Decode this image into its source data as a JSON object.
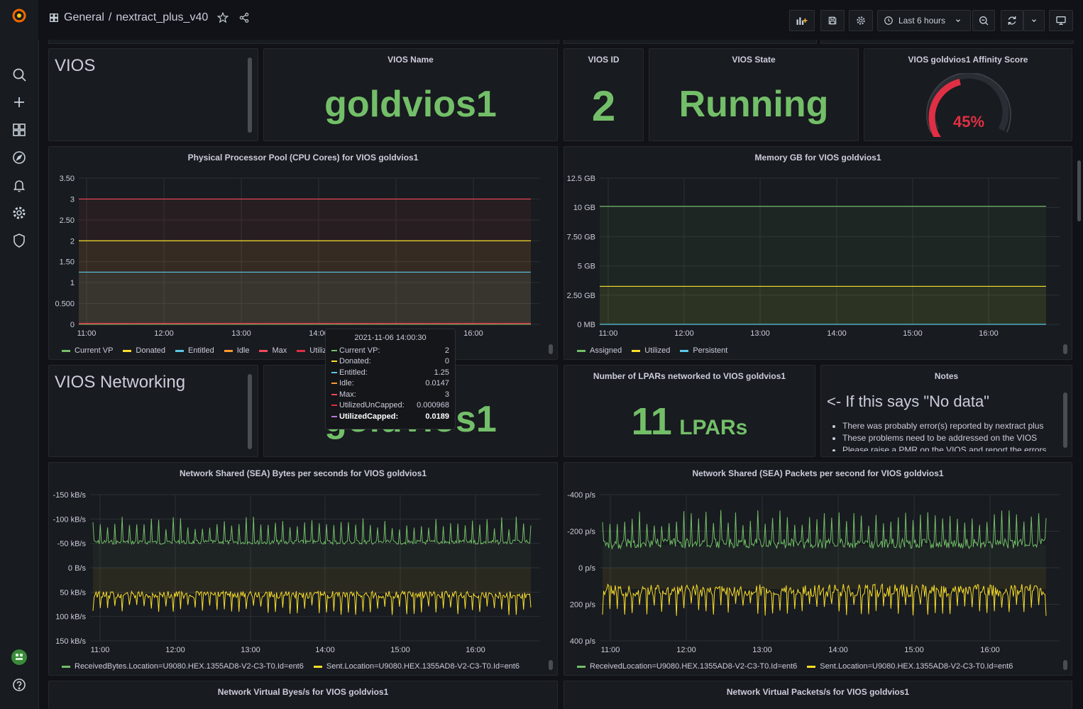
{
  "breadcrumb": {
    "folder": "General",
    "separator": "/",
    "dashboard": "nextract_plus_v40"
  },
  "toolbar": {
    "time_range": "Last 6 hours"
  },
  "colors": {
    "green": "#73bf69",
    "yellow": "#fade2a",
    "cyan": "#5ac8e6",
    "orange": "#ff9830",
    "red": "#f2495c",
    "darkred": "#e02f44",
    "purple": "#b877d9"
  },
  "vios_row": {
    "title": "VIOS"
  },
  "vios_name": {
    "title": "VIOS Name",
    "value": "goldvios1"
  },
  "vios_id": {
    "title": "VIOS ID",
    "value": "2"
  },
  "vios_state": {
    "title": "VIOS State",
    "value": "Running"
  },
  "affinity": {
    "title": "VIOS goldvios1 Affinity Score",
    "value": "45%",
    "fraction": 0.45
  },
  "cpu_panel": {
    "title": "Physical Processor Pool (CPU Cores) for VIOS goldvios1",
    "y_ticks": [
      "0",
      "0.500",
      "1",
      "1.50",
      "2",
      "2.50",
      "3",
      "3.50"
    ],
    "x_ticks": [
      "11:00",
      "12:00",
      "13:00",
      "14:00",
      "15:00",
      "16:00"
    ],
    "legend": [
      {
        "name": "Current VP",
        "color": "#73bf69"
      },
      {
        "name": "Donated",
        "color": "#fade2a"
      },
      {
        "name": "Entitled",
        "color": "#5ac8e6"
      },
      {
        "name": "Idle",
        "color": "#ff9830"
      },
      {
        "name": "Max",
        "color": "#f2495c"
      },
      {
        "name": "UtilizedUnCapped",
        "color": "#e02f44"
      }
    ]
  },
  "tooltip": {
    "time": "2021-11-06 14:00:30",
    "rows": [
      {
        "label": "Current VP:",
        "value": "2",
        "color": "#73bf69"
      },
      {
        "label": "Donated:",
        "value": "0",
        "color": "#fade2a"
      },
      {
        "label": "Entitled:",
        "value": "1.25",
        "color": "#5ac8e6"
      },
      {
        "label": "Idle:",
        "value": "0.0147",
        "color": "#ff9830"
      },
      {
        "label": "Max:",
        "value": "3",
        "color": "#f2495c"
      },
      {
        "label": "UtilizedUnCapped:",
        "value": "0.000968",
        "color": "#e02f44"
      },
      {
        "label": "UtilizedCapped:",
        "value": "0.0189",
        "color": "#b877d9"
      }
    ]
  },
  "mem_panel": {
    "title": "Memory GB for VIOS goldvios1",
    "y_ticks": [
      "0 MB",
      "2.50 GB",
      "5 GB",
      "7.50 GB",
      "10 GB",
      "12.5 GB"
    ],
    "x_ticks": [
      "11:00",
      "12:00",
      "13:00",
      "14:00",
      "15:00",
      "16:00"
    ],
    "legend": [
      {
        "name": "Assigned",
        "color": "#73bf69"
      },
      {
        "name": "Utilized",
        "color": "#fade2a"
      },
      {
        "name": "Persistent",
        "color": "#5ac8e6"
      }
    ]
  },
  "net_row": {
    "title": "VIOS Networking"
  },
  "net_name": {
    "value": "goldvios1"
  },
  "lpars": {
    "title": "Number of LPARs networked to VIOS goldvios1",
    "value": "11",
    "unit": "LPARs"
  },
  "notes": {
    "title": "Notes",
    "heading": "<- If this says \"No data\"",
    "items": [
      "There was probably error(s) reported by nextract plus",
      "These problems need to be addressed on the VIOS",
      "Please raise a PMR on the VIOS and report the errors"
    ]
  },
  "sea_bytes": {
    "title": "Network Shared (SEA) Bytes per seconds for VIOS goldvios1",
    "y_ticks": [
      "150 kB/s",
      "100 kB/s",
      "50 kB/s",
      "0 B/s",
      "-50 kB/s",
      "-100 kB/s",
      "-150 kB/s"
    ],
    "x_ticks": [
      "11:00",
      "12:00",
      "13:00",
      "14:00",
      "15:00",
      "16:00"
    ],
    "legend": [
      {
        "name": "ReceivedBytes.Location=U9080.HEX.1355AD8-V2-C3-T0.Id=ent6",
        "color": "#73bf69"
      },
      {
        "name": "Sent.Location=U9080.HEX.1355AD8-V2-C3-T0.Id=ent6",
        "color": "#fade2a"
      }
    ]
  },
  "sea_packets": {
    "title": "Network Shared (SEA) Packets per second for VIOS goldvios1",
    "y_ticks": [
      "400 p/s",
      "200 p/s",
      "0 p/s",
      "-200 p/s",
      "-400 p/s"
    ],
    "x_ticks": [
      "11:00",
      "12:00",
      "13:00",
      "14:00",
      "15:00",
      "16:00"
    ],
    "legend": [
      {
        "name": "ReceivedLocation=U9080.HEX.1355AD8-V2-C3-T0.Id=ent6",
        "color": "#73bf69"
      },
      {
        "name": "Sent.Location=U9080.HEX.1355AD8-V2-C3-T0.Id=ent6",
        "color": "#fade2a"
      }
    ]
  },
  "virt_bytes": {
    "title": "Network Virtual Byes/s for VIOS goldvios1"
  },
  "virt_packets": {
    "title": "Network Virtual Packets/s for VIOS goldvios1"
  }
}
